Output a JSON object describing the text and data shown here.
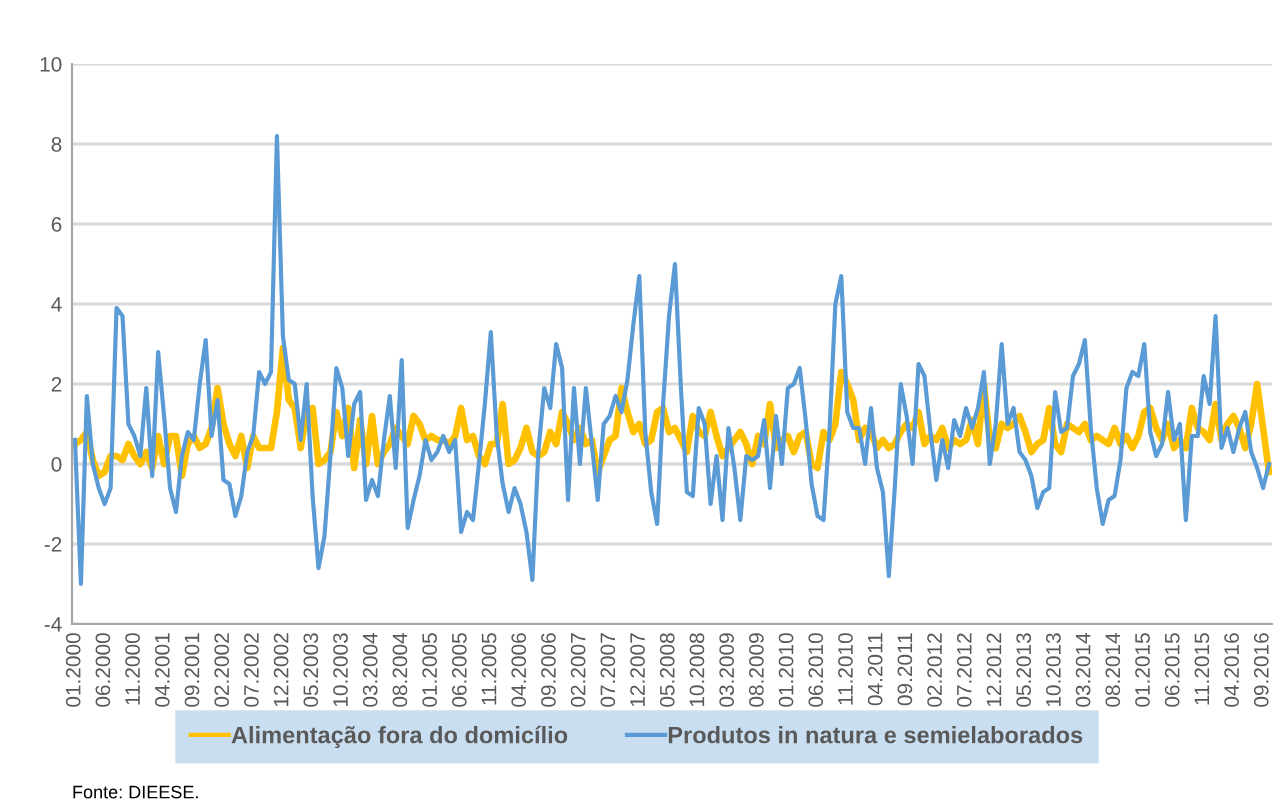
{
  "chart_data": {
    "type": "line",
    "categories": [
      "01.2000",
      null,
      null,
      null,
      null,
      "06.2000",
      null,
      null,
      null,
      null,
      "11.2000",
      null,
      null,
      null,
      null,
      "04.2001",
      null,
      null,
      null,
      null,
      "09.2001",
      null,
      null,
      null,
      null,
      "02.2002",
      null,
      null,
      null,
      null,
      "07.2002",
      null,
      null,
      null,
      null,
      "12.2002",
      null,
      null,
      null,
      null,
      "05.2003",
      null,
      null,
      null,
      null,
      "10.2003",
      null,
      null,
      null,
      null,
      "03.2004",
      null,
      null,
      null,
      null,
      "08.2004",
      null,
      null,
      null,
      null,
      "01.2005",
      null,
      null,
      null,
      null,
      "06.2005",
      null,
      null,
      null,
      null,
      "11.2005",
      null,
      null,
      null,
      null,
      "04.2006",
      null,
      null,
      null,
      null,
      "09.2006",
      null,
      null,
      null,
      null,
      "02.2007",
      null,
      null,
      null,
      null,
      "07.2007",
      null,
      null,
      null,
      null,
      "12.2007",
      null,
      null,
      null,
      null,
      "05.2008",
      null,
      null,
      null,
      null,
      "10.2008",
      null,
      null,
      null,
      null,
      "03.2009",
      null,
      null,
      null,
      null,
      "08.2009",
      null,
      null,
      null,
      null,
      "01.2010",
      null,
      null,
      null,
      null,
      "06.2010",
      null,
      null,
      null,
      null,
      "11.2010",
      null,
      null,
      null,
      null,
      "04.2011",
      null,
      null,
      null,
      null,
      "09.2011",
      null,
      null,
      null,
      null,
      "02.2012",
      null,
      null,
      null,
      null,
      "07.2012",
      null,
      null,
      null,
      null,
      "12.2012",
      null,
      null,
      null,
      null,
      "05.2013",
      null,
      null,
      null,
      null,
      "10.2013",
      null,
      null,
      null,
      null,
      "03.2014",
      null,
      null,
      null,
      null,
      "08.2014",
      null,
      null,
      null,
      null,
      "01.2015",
      null,
      null,
      null,
      null,
      "06.2015",
      null,
      null,
      null,
      null,
      "11.2015",
      null,
      null,
      null,
      null,
      "04.2016",
      null,
      null,
      null,
      null,
      "09.2016",
      null
    ],
    "series": [
      {
        "name": "Alimentação fora do domicílio",
        "color": "#ffc000",
        "values": [
          0.5,
          0.6,
          0.8,
          0.1,
          -0.3,
          -0.2,
          0.2,
          0.2,
          0.1,
          0.5,
          0.2,
          0.0,
          0.3,
          -0.1,
          0.7,
          0.0,
          0.7,
          0.7,
          -0.3,
          0.5,
          0.7,
          0.4,
          0.5,
          0.9,
          1.9,
          1.0,
          0.5,
          0.2,
          0.7,
          -0.1,
          0.7,
          0.4,
          0.4,
          0.4,
          1.3,
          2.9,
          1.6,
          1.4,
          0.4,
          1.3,
          1.4,
          0.0,
          0.1,
          0.3,
          1.3,
          0.7,
          1.4,
          -0.1,
          1.1,
          0.0,
          1.2,
          0.0,
          0.3,
          0.5,
          0.9,
          0.7,
          0.5,
          1.2,
          1.0,
          0.6,
          0.7,
          0.6,
          0.6,
          0.5,
          0.7,
          1.4,
          0.6,
          0.7,
          0.2,
          0.0,
          0.5,
          0.5,
          1.5,
          0.0,
          0.1,
          0.4,
          0.9,
          0.3,
          0.2,
          0.3,
          0.8,
          0.5,
          1.3,
          1.0,
          0.6,
          0.9,
          0.5,
          0.6,
          -0.2,
          0.2,
          0.6,
          0.7,
          1.9,
          1.3,
          0.8,
          1.0,
          0.5,
          0.6,
          1.3,
          1.4,
          0.8,
          0.9,
          0.6,
          0.3,
          1.2,
          0.8,
          0.7,
          1.3,
          0.7,
          0.2,
          0.4,
          0.6,
          0.8,
          0.5,
          0.0,
          0.7,
          0.5,
          1.5,
          0.4,
          0.6,
          0.7,
          0.3,
          0.7,
          0.8,
          0.0,
          -0.1,
          0.8,
          0.6,
          1.0,
          2.3,
          2.0,
          1.6,
          0.6,
          0.9,
          0.8,
          0.4,
          0.6,
          0.4,
          0.5,
          0.8,
          1.0,
          0.9,
          1.3,
          0.5,
          0.7,
          0.6,
          0.9,
          0.4,
          0.6,
          0.5,
          0.6,
          1.1,
          0.5,
          2.0,
          0.6,
          0.4,
          1.0,
          0.9,
          1.0,
          1.2,
          0.8,
          0.3,
          0.5,
          0.6,
          1.4,
          0.5,
          0.3,
          1.0,
          0.9,
          0.8,
          1.0,
          0.6,
          0.7,
          0.6,
          0.5,
          0.9,
          0.5,
          0.7,
          0.4,
          0.7,
          1.3,
          1.4,
          0.9,
          0.6,
          1.0,
          0.4,
          0.6,
          0.4,
          1.4,
          0.9,
          0.8,
          0.6,
          1.5,
          0.6,
          1.0,
          1.2,
          0.9,
          0.4,
          1.0,
          2.0,
          0.9,
          -0.2
        ]
      },
      {
        "name": "Produtos in natura e semielaborados",
        "color": "#5b9bd5",
        "values": [
          0.6,
          -3.0,
          1.7,
          0.0,
          -0.6,
          -1.0,
          -0.6,
          3.9,
          3.7,
          1.0,
          0.7,
          0.2,
          1.9,
          -0.3,
          2.8,
          1.2,
          -0.6,
          -1.2,
          0.2,
          0.8,
          0.6,
          2.0,
          3.1,
          0.7,
          1.6,
          -0.4,
          -0.5,
          -1.3,
          -0.8,
          0.3,
          0.7,
          2.3,
          2.0,
          2.3,
          8.2,
          3.2,
          2.1,
          2.0,
          0.6,
          2.0,
          -0.8,
          -2.6,
          -1.8,
          0.2,
          2.4,
          1.9,
          0.2,
          1.5,
          1.8,
          -0.9,
          -0.4,
          -0.8,
          0.6,
          1.7,
          -0.1,
          2.6,
          -1.6,
          -0.9,
          -0.3,
          0.6,
          0.1,
          0.3,
          0.7,
          0.3,
          0.6,
          -1.7,
          -1.2,
          -1.4,
          0.0,
          1.5,
          3.3,
          0.7,
          -0.5,
          -1.2,
          -0.6,
          -1.0,
          -1.7,
          -2.9,
          0.3,
          1.9,
          1.4,
          3.0,
          2.4,
          -0.9,
          1.9,
          0.0,
          1.9,
          0.5,
          -0.9,
          1.0,
          1.2,
          1.7,
          1.3,
          2.1,
          3.5,
          4.7,
          0.8,
          -0.7,
          -1.5,
          1.5,
          3.7,
          5.0,
          1.9,
          -0.7,
          -0.8,
          1.4,
          1.0,
          -1.0,
          0.2,
          -1.4,
          0.9,
          -0.1,
          -1.4,
          0.2,
          0.1,
          0.2,
          1.1,
          -0.6,
          1.2,
          0.0,
          1.9,
          2.0,
          2.4,
          1.1,
          -0.5,
          -1.3,
          -1.4,
          0.8,
          4.0,
          4.7,
          1.3,
          0.9,
          0.9,
          0.0,
          1.4,
          -0.1,
          -0.7,
          -2.8,
          -0.6,
          2.0,
          1.2,
          0.0,
          2.5,
          2.2,
          0.8,
          -0.4,
          0.6,
          -0.1,
          1.1,
          0.7,
          1.4,
          0.9,
          1.4,
          2.3,
          0.0,
          1.0,
          3.0,
          1.0,
          1.4,
          0.3,
          0.1,
          -0.3,
          -1.1,
          -0.7,
          -0.6,
          1.8,
          0.8,
          0.9,
          2.2,
          2.5,
          3.1,
          0.9,
          -0.6,
          -1.5,
          -0.9,
          -0.8,
          0.1,
          1.9,
          2.3,
          2.2,
          3.0,
          0.8,
          0.2,
          0.5,
          1.8,
          0.6,
          1.0,
          -1.4,
          0.7,
          0.7,
          2.2,
          1.5,
          3.7,
          0.4,
          0.9,
          0.3,
          0.9,
          1.3,
          0.3,
          -0.1,
          -0.6,
          0.0
        ]
      }
    ],
    "ylim": [
      -4,
      10
    ],
    "yticks": [
      -4,
      -2,
      0,
      2,
      4,
      6,
      8,
      10
    ],
    "grid": "y",
    "legend": "bottom",
    "annotations": [
      "Fonte: DIEESE."
    ]
  }
}
